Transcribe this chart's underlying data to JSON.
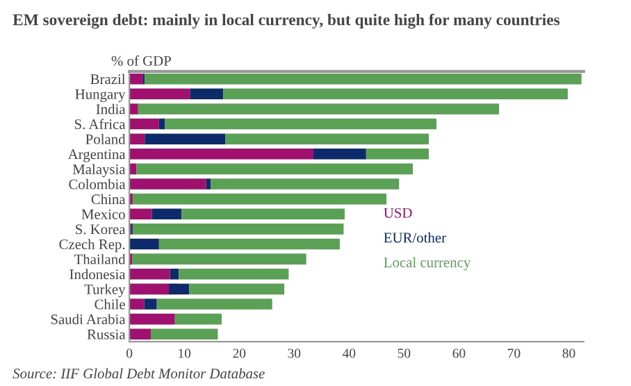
{
  "chart_data": {
    "type": "bar",
    "orientation": "horizontal",
    "stacked": true,
    "title": "EM sovereign debt: mainly in local currency, but quite high for many countries",
    "xlabel": "% of GDP",
    "categories": [
      "Brazil",
      "Hungary",
      "India",
      "S. Africa",
      "Poland",
      "Argentina",
      "Malaysia",
      "Colombia",
      "China",
      "Mexico",
      "S. Korea",
      "Czech Rep.",
      "Thailand",
      "Indonesia",
      "Turkey",
      "Chile",
      "Saudi Arabia",
      "Russia"
    ],
    "series": [
      {
        "name": "USD",
        "color": "#a0106e",
        "values": [
          2.5,
          11.1,
          1.6,
          5.4,
          2.8,
          33.5,
          1.3,
          14.0,
          0.6,
          4.1,
          0.3,
          0,
          0.5,
          7.4,
          7.2,
          2.7,
          8.3,
          3.9
        ]
      },
      {
        "name": "EUR/other",
        "color": "#0d2a6b",
        "values": [
          0.3,
          6.0,
          0,
          1.1,
          14.7,
          9.6,
          0,
          0.8,
          0,
          5.4,
          0.3,
          5.4,
          0,
          1.6,
          3.7,
          2.3,
          0,
          0
        ]
      },
      {
        "name": "Local currency",
        "color": "#5aa055",
        "values": [
          79.5,
          62.7,
          65.7,
          49.4,
          37.0,
          11.4,
          50.3,
          34.3,
          46.2,
          29.7,
          38.4,
          32.9,
          31.7,
          20.0,
          17.3,
          21.0,
          8.5,
          12.2
        ]
      }
    ],
    "xlim": [
      0,
      82.7
    ],
    "xticks": [
      0,
      10,
      20,
      30,
      40,
      50,
      60,
      70,
      80
    ],
    "grid": false,
    "legend": "right",
    "annotations": [
      "Source: IIF Global Debt Monitor Database"
    ]
  }
}
